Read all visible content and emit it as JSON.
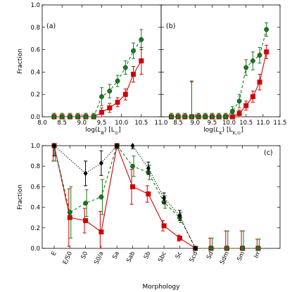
{
  "ylabel": "Fraction",
  "chart_data": [
    {
      "id": "a",
      "panel_label": "(a)",
      "type": "scatter",
      "xlabel_main": "log(",
      "xlabel_sym": "L",
      "xlabel_sub": "B",
      "xlabel_tail": ") [L",
      "xlabel_unit_sub": "⊙",
      "xlabel_close": "]",
      "ylabel": "Fraction",
      "xlim": [
        8.0,
        11.0
      ],
      "ylim": [
        0.0,
        1.0
      ],
      "xticks": [
        "8.0",
        "8.5",
        "9.0",
        "9.5",
        "10.0",
        "10.5",
        "11.0"
      ],
      "yticks": [
        "0.0",
        "0.2",
        "0.4",
        "0.6",
        "0.8",
        "1.0"
      ],
      "series": [
        {
          "color": "#d00000",
          "marker": "square",
          "line": "solid",
          "x": [
            8.3,
            8.5,
            8.7,
            8.9,
            9.1,
            9.3,
            9.5,
            9.7,
            9.9,
            10.1,
            10.3,
            10.5
          ],
          "y": [
            0.0,
            0.0,
            0.0,
            0.0,
            0.0,
            0.0,
            0.04,
            0.08,
            0.13,
            0.2,
            0.38,
            0.5
          ],
          "err": [
            0.03,
            0.03,
            0.03,
            0.03,
            0.03,
            0.03,
            0.04,
            0.04,
            0.04,
            0.05,
            0.07,
            0.12
          ]
        },
        {
          "color": "#1a7a1a",
          "marker": "circle",
          "line": "dashed",
          "x": [
            8.3,
            8.5,
            8.7,
            8.9,
            9.1,
            9.3,
            9.5,
            9.7,
            9.9,
            10.1,
            10.3,
            10.5
          ],
          "y": [
            0.0,
            0.0,
            0.0,
            0.0,
            0.0,
            0.0,
            0.18,
            0.23,
            0.32,
            0.44,
            0.59,
            0.69
          ],
          "err": [
            0.03,
            0.03,
            0.03,
            0.03,
            0.03,
            0.03,
            0.08,
            0.06,
            0.05,
            0.06,
            0.07,
            0.09
          ]
        }
      ]
    },
    {
      "id": "b",
      "panel_label": "(b)",
      "type": "scatter",
      "xlabel_main": "log(",
      "xlabel_sym": "L",
      "xlabel_sub": "K",
      "xlabel_tail": ") [L",
      "xlabel_unit_sub": "K,⊙",
      "xlabel_close": "]",
      "xlim": [
        8.0,
        11.5
      ],
      "ylim": [
        0.0,
        1.0
      ],
      "xticks": [
        "8.5",
        "9.0",
        "9.5",
        "10.0",
        "10.5",
        "11.0",
        "11.5"
      ],
      "yticks": [
        "0.0",
        "0.2",
        "0.4",
        "0.6",
        "0.8",
        "1.0"
      ],
      "series": [
        {
          "color": "#d00000",
          "marker": "square",
          "line": "solid",
          "x": [
            8.3,
            8.5,
            8.7,
            8.9,
            9.1,
            9.3,
            9.5,
            9.7,
            9.9,
            10.1,
            10.3,
            10.5,
            10.7,
            10.9,
            11.1
          ],
          "y": [
            0.0,
            0.0,
            0.0,
            0.0,
            0.0,
            0.0,
            0.0,
            0.0,
            0.0,
            0.0,
            0.03,
            0.1,
            0.18,
            0.31,
            0.58
          ],
          "err": [
            0.03,
            0.03,
            0.03,
            0.32,
            0.03,
            0.03,
            0.03,
            0.03,
            0.03,
            0.03,
            0.03,
            0.04,
            0.05,
            0.07,
            0.06
          ]
        },
        {
          "color": "#1a7a1a",
          "marker": "circle",
          "line": "dashed",
          "x": [
            8.3,
            8.5,
            8.7,
            8.9,
            9.1,
            9.3,
            9.5,
            9.7,
            9.9,
            10.1,
            10.3,
            10.5,
            10.7,
            10.9,
            11.1
          ],
          "y": [
            0.0,
            0.0,
            0.0,
            0.0,
            0.0,
            0.0,
            0.0,
            0.0,
            0.0,
            0.05,
            0.14,
            0.44,
            0.5,
            0.55,
            0.78
          ],
          "err": [
            0.03,
            0.03,
            0.03,
            0.31,
            0.03,
            0.03,
            0.03,
            0.03,
            0.03,
            0.04,
            0.06,
            0.07,
            0.08,
            0.07,
            0.06
          ]
        }
      ]
    },
    {
      "id": "c",
      "panel_label": "(c)",
      "type": "scatter",
      "xlabel": "Morphology",
      "ylim": [
        0.0,
        1.0
      ],
      "categories": [
        "E",
        "E/S0",
        "S0",
        "S0/a",
        "Sa",
        "Sab",
        "Sb",
        "Sbc",
        "Sc",
        "Scd",
        "Sd",
        "Sdm",
        "Sm",
        "Irr"
      ],
      "yticks": [
        "0.0",
        "0.2",
        "0.4",
        "0.6",
        "0.8",
        "1.0"
      ],
      "series": [
        {
          "color": "#d00000",
          "marker": "square",
          "line": "solid",
          "idx": [
            0,
            1,
            2,
            3,
            4,
            5,
            6,
            7,
            8,
            9,
            10,
            11,
            12,
            13
          ],
          "y": [
            1.0,
            0.3,
            0.27,
            0.16,
            1.0,
            0.6,
            0.53,
            0.22,
            0.1,
            0.0,
            0.0,
            0.0,
            0.0,
            0.0
          ],
          "err": [
            0.15,
            0.28,
            0.12,
            0.2,
            0.03,
            0.17,
            0.08,
            0.05,
            0.03,
            0.02,
            0.1,
            0.17,
            0.17,
            0.09
          ]
        },
        {
          "color": "#1a7a1a",
          "marker": "circle",
          "line": "dashed",
          "idx": [
            0,
            1,
            2,
            3,
            4,
            5,
            6,
            7,
            8,
            9,
            10,
            11,
            12,
            13
          ],
          "y": [
            1.0,
            0.35,
            0.44,
            0.5,
            1.0,
            0.8,
            0.74,
            0.45,
            0.3,
            0.0,
            0.0,
            0.0,
            0.0,
            0.0
          ],
          "err": [
            0.15,
            0.25,
            0.13,
            0.17,
            0.03,
            0.1,
            0.07,
            0.06,
            0.05,
            0.02,
            0.1,
            0.17,
            0.17,
            0.09
          ]
        },
        {
          "color": "#000000",
          "marker": "diamond",
          "line": "dotted",
          "idx": [
            0,
            2,
            3,
            4,
            5,
            6,
            7,
            8,
            9
          ],
          "y": [
            1.0,
            0.73,
            0.83,
            1.0,
            1.0,
            0.78,
            0.49,
            0.32,
            0.0
          ],
          "err": [
            0.1,
            0.12,
            0.12,
            0.02,
            0.03,
            0.06,
            0.05,
            0.05,
            0.02
          ]
        }
      ]
    }
  ]
}
